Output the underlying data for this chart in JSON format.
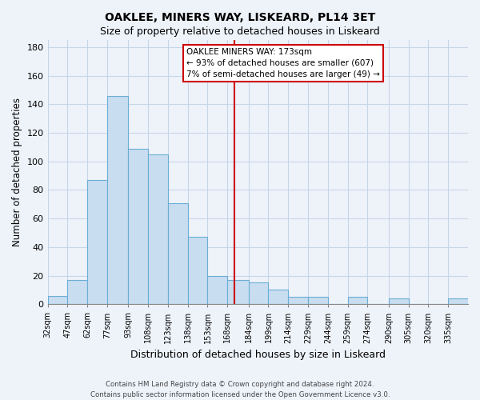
{
  "title": "OAKLEE, MINERS WAY, LISKEARD, PL14 3ET",
  "subtitle": "Size of property relative to detached houses in Liskeard",
  "xlabel": "Distribution of detached houses by size in Liskeard",
  "ylabel": "Number of detached properties",
  "bar_color": "#c8ddf0",
  "bar_edge_color": "#6aaed6",
  "background_color": "#eef3fa",
  "plot_bg_color": "#eef3fa",
  "grid_color": "#c8d4e8",
  "vline_color": "#cc0000",
  "annotation_text_line1": "OAKLEE MINERS WAY: 173sqm",
  "annotation_text_line2": "← 93% of detached houses are smaller (607)",
  "annotation_text_line3": "7% of semi-detached houses are larger (49) →",
  "annotation_box_edge": "#cc0000",
  "footer_line1": "Contains HM Land Registry data © Crown copyright and database right 2024.",
  "footer_line2": "Contains public sector information licensed under the Open Government Licence v3.0.",
  "bins_left": [
    32,
    47,
    62,
    77,
    93,
    108,
    123,
    138,
    153,
    168,
    184,
    199,
    214,
    229,
    244,
    259,
    274,
    290,
    305,
    320,
    335
  ],
  "bins_right": [
    47,
    62,
    77,
    93,
    108,
    123,
    138,
    153,
    168,
    184,
    199,
    214,
    229,
    244,
    259,
    274,
    290,
    305,
    320,
    335,
    350
  ],
  "counts": [
    6,
    17,
    87,
    146,
    109,
    105,
    71,
    47,
    20,
    17,
    15,
    10,
    5,
    5,
    0,
    5,
    0,
    4,
    0,
    0,
    4
  ],
  "tick_labels": [
    "32sqm",
    "47sqm",
    "62sqm",
    "77sqm",
    "93sqm",
    "108sqm",
    "123sqm",
    "138sqm",
    "153sqm",
    "168sqm",
    "184sqm",
    "199sqm",
    "214sqm",
    "229sqm",
    "244sqm",
    "259sqm",
    "274sqm",
    "290sqm",
    "305sqm",
    "320sqm",
    "335sqm"
  ],
  "vline_x": 173,
  "xlim_left": 32,
  "xlim_right": 350,
  "ylim": [
    0,
    185
  ],
  "yticks": [
    0,
    20,
    40,
    60,
    80,
    100,
    120,
    140,
    160,
    180
  ]
}
